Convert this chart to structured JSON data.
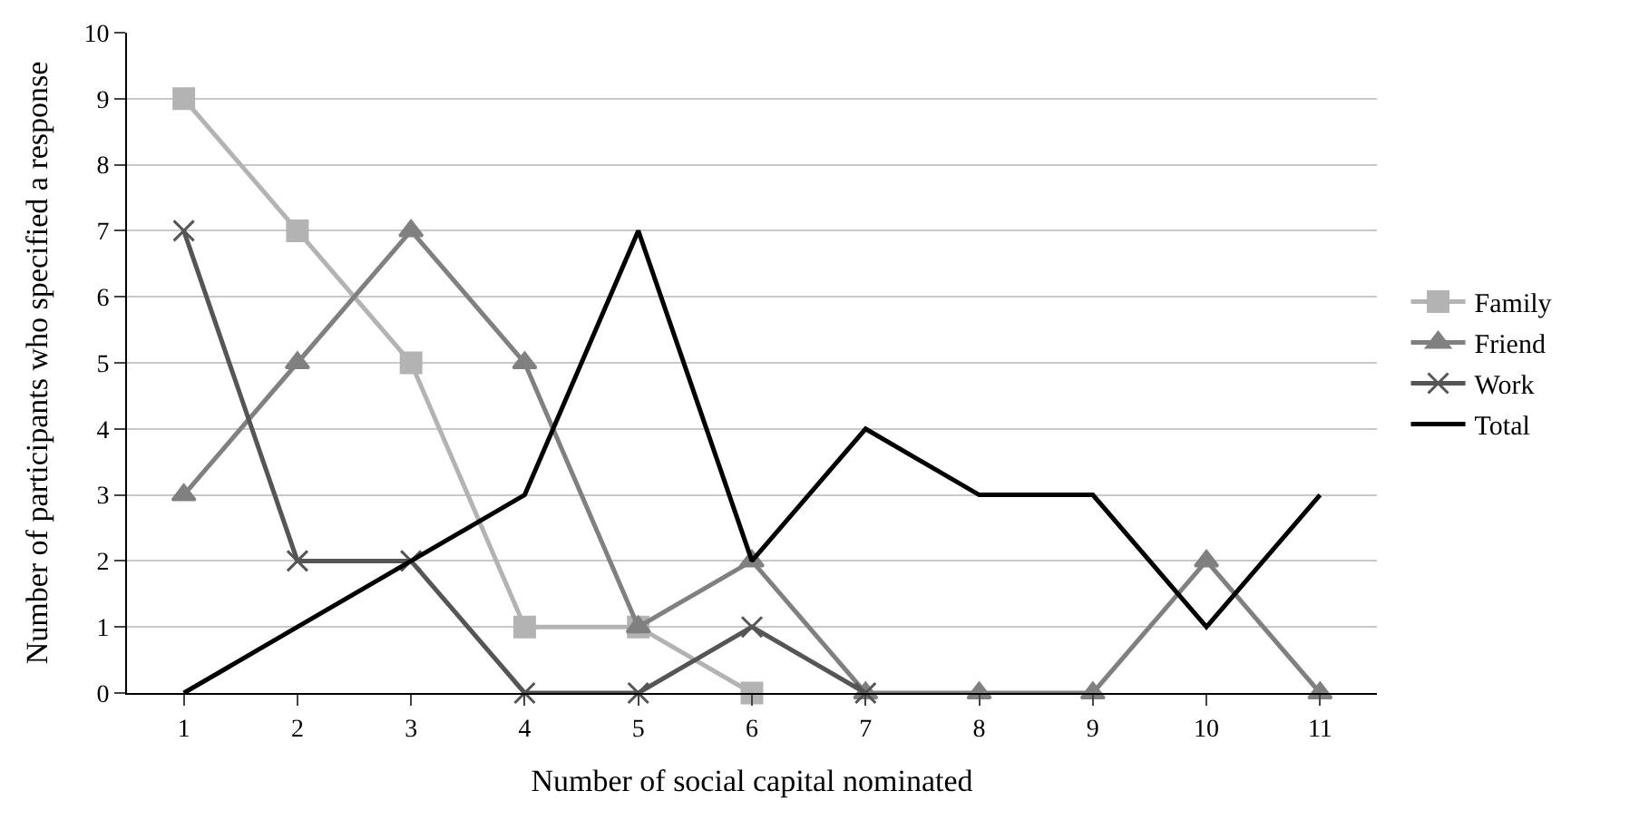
{
  "chart_data": {
    "type": "line",
    "xlabel": "Number of social capital nominated",
    "ylabel": "Number of participants who specified a response",
    "categories": [
      "1",
      "2",
      "3",
      "4",
      "5",
      "6",
      "7",
      "8",
      "9",
      "10",
      "11"
    ],
    "series": [
      {
        "name": "Family",
        "color": "#b3b3b3",
        "marker": "square",
        "values": [
          9,
          7,
          5,
          1,
          1,
          0,
          null,
          null,
          null,
          null,
          null
        ]
      },
      {
        "name": "Friend",
        "color": "#808080",
        "marker": "triangle",
        "values": [
          3,
          5,
          7,
          5,
          1,
          2,
          0,
          0,
          0,
          2,
          0
        ]
      },
      {
        "name": "Work",
        "color": "#555555",
        "marker": "cross",
        "values": [
          7,
          2,
          2,
          0,
          0,
          1,
          0,
          null,
          null,
          null,
          null
        ]
      },
      {
        "name": "Total",
        "color": "#000000",
        "marker": "none",
        "values": [
          0,
          1,
          2,
          3,
          7,
          2,
          4,
          3,
          3,
          1,
          3
        ]
      }
    ],
    "ylim": [
      0,
      10
    ],
    "yticks": [
      0,
      1,
      2,
      3,
      4,
      5,
      6,
      7,
      8,
      9,
      10
    ],
    "grid": "y",
    "legend": "right",
    "line_style": "solid"
  }
}
